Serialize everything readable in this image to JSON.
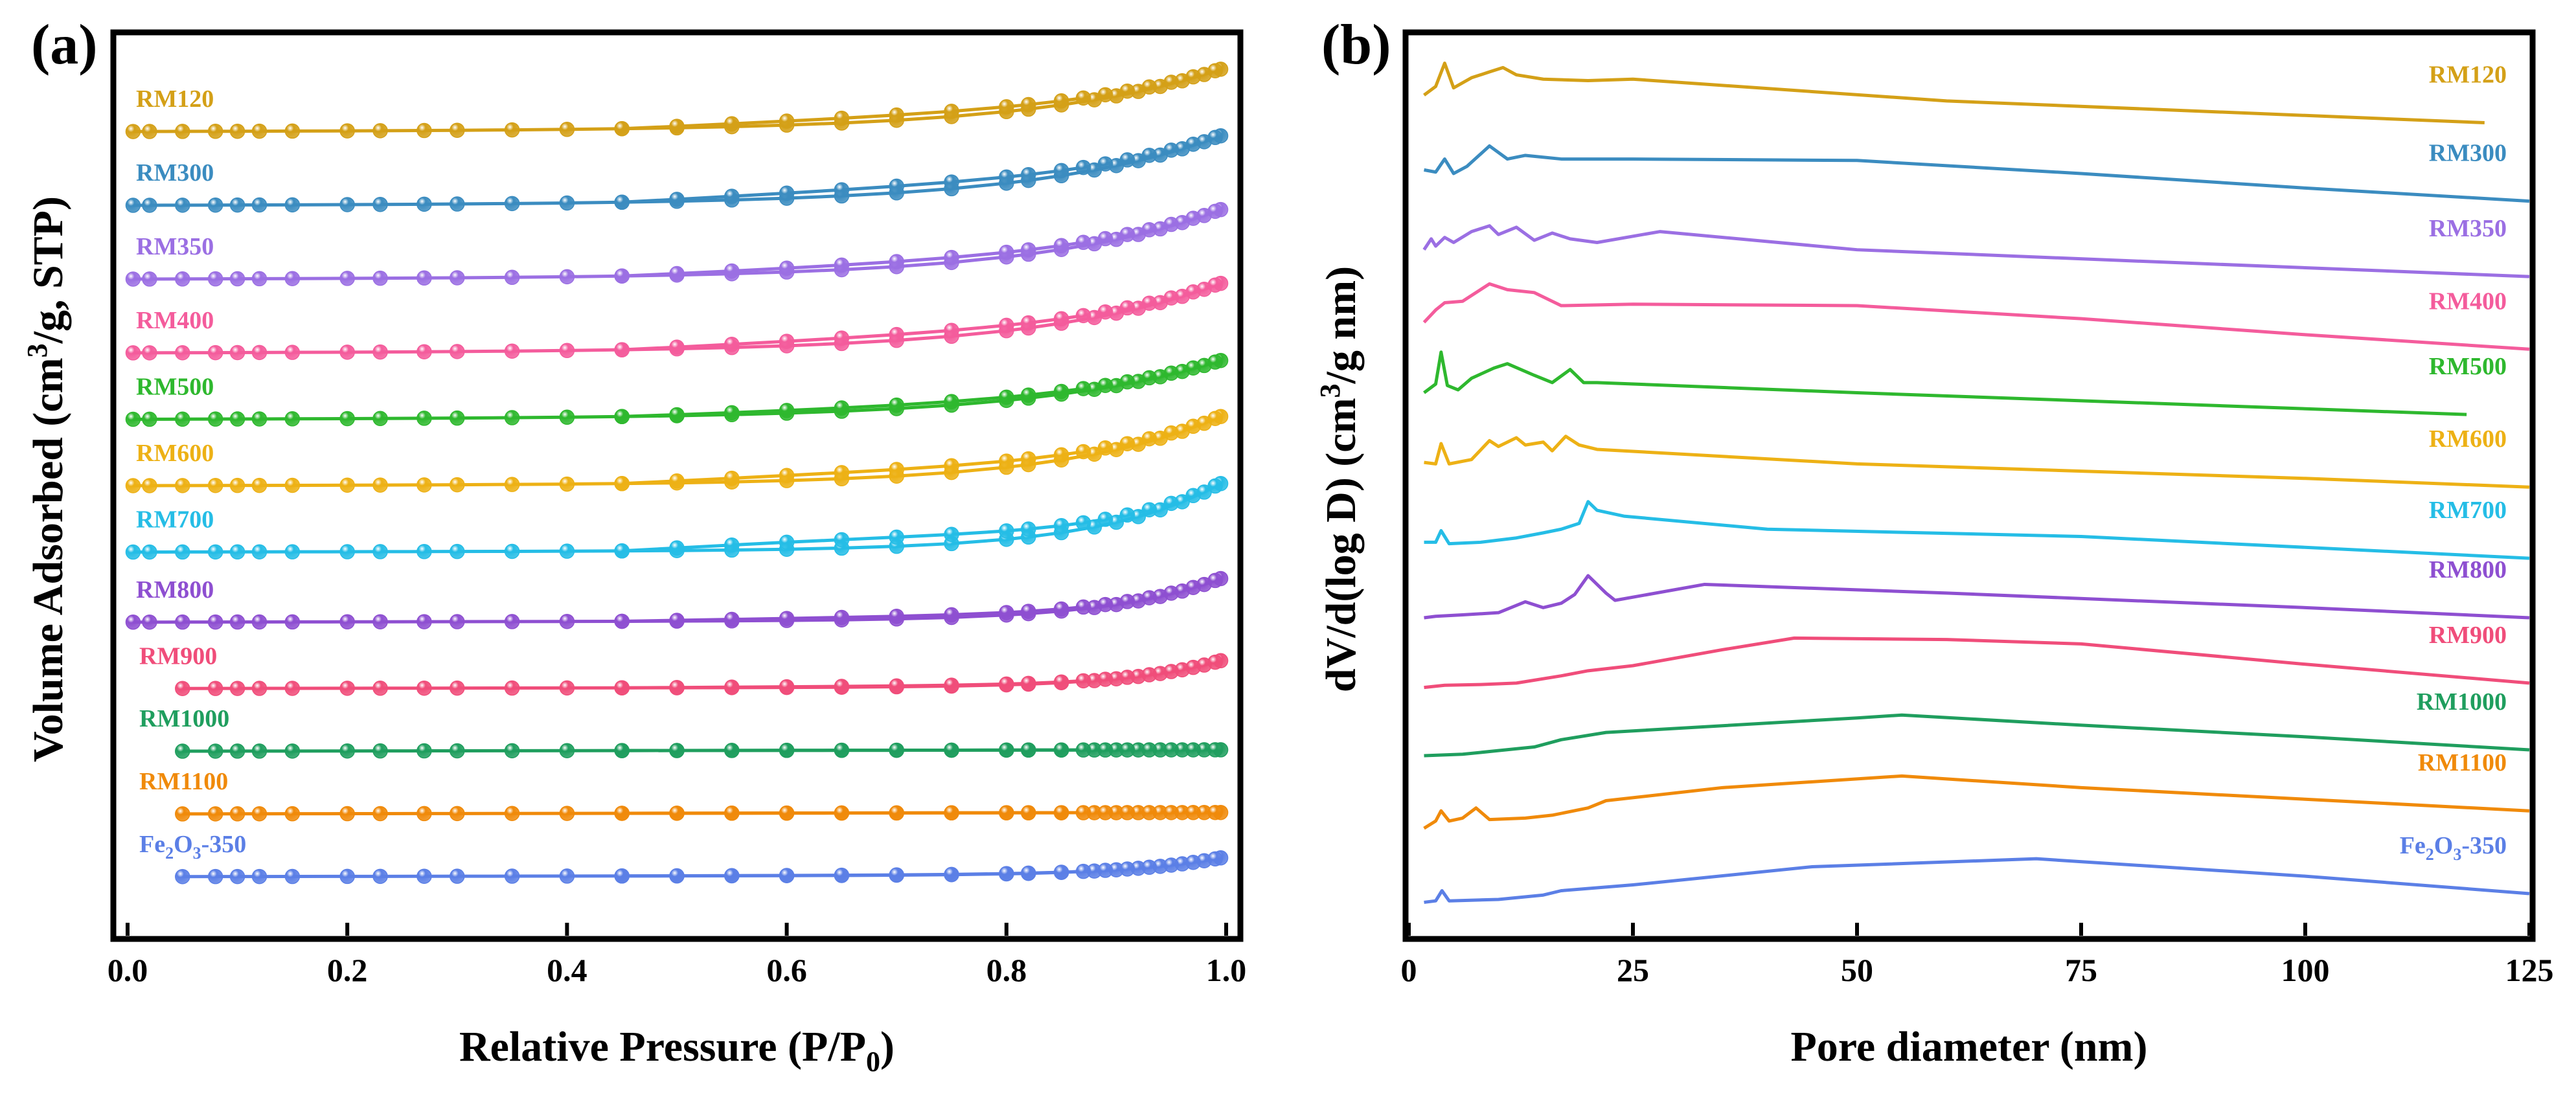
{
  "panels": [
    {
      "label": "(a)",
      "chart_data": {
        "type": "line",
        "xlabel": "Relative Pressure (P/P0)",
        "xlabel_main": "Relative Pressure (P/P",
        "xlabel_sub": "0",
        "xlabel_close": ")",
        "ylabel": "Volume Adsorbed (cm3/g, STP)",
        "ylabel_pre": "Volume Adsorbed (cm",
        "ylabel_sup": "3",
        "ylabel_post": "/g, STP)",
        "xlim": [
          0.0,
          1.0
        ],
        "xticks": [
          "0.0",
          "0.2",
          "0.4",
          "0.6",
          "0.8",
          "1.0"
        ],
        "y_ticks_shown": false,
        "series": [
          {
            "name": "RM120",
            "color": "#D4A017",
            "offset": 10.9,
            "rise": 0.85,
            "k": 6,
            "hyst": 0.14
          },
          {
            "name": "RM300",
            "color": "#3B8CC0",
            "offset": 9.9,
            "rise": 0.95,
            "k": 6,
            "hyst": 0.16
          },
          {
            "name": "RM350",
            "color": "#9B6FE3",
            "offset": 8.9,
            "rise": 0.95,
            "k": 6,
            "hyst": 0.12
          },
          {
            "name": "RM400",
            "color": "#F45C9C",
            "offset": 7.9,
            "rise": 0.95,
            "k": 6,
            "hyst": 0.14
          },
          {
            "name": "RM500",
            "color": "#2EB82E",
            "offset": 7.0,
            "rise": 0.8,
            "k": 6,
            "hyst": 0.1
          },
          {
            "name": "RM600",
            "color": "#EDB115",
            "offset": 6.1,
            "rise": 0.95,
            "k": 7,
            "hyst": 0.16
          },
          {
            "name": "RM700",
            "color": "#25BDE6",
            "offset": 5.2,
            "rise": 0.95,
            "k": 9,
            "hyst": 0.22
          },
          {
            "name": "RM800",
            "color": "#8E4FD1",
            "offset": 4.25,
            "rise": 0.6,
            "k": 10,
            "hyst": 0.1
          },
          {
            "name": "RM900",
            "color": "#F04D7A",
            "offset": 3.35,
            "rise": 0.38,
            "k": 12,
            "hyst": 0.05
          },
          {
            "name": "RM1000",
            "color": "#1F9E5E",
            "offset": 2.5,
            "rise": 0.0,
            "k": 12,
            "hyst": 0.0
          },
          {
            "name": "RM1100",
            "color": "#F08A0A",
            "offset": 1.65,
            "rise": 0.0,
            "k": 12,
            "hyst": 0.0
          },
          {
            "name": "Fe2O3-350",
            "color": "#5B7FE6",
            "offset": 0.8,
            "rise": 0.25,
            "k": 12,
            "hyst": 0.02
          }
        ]
      }
    },
    {
      "label": "(b)",
      "chart_data": {
        "type": "line",
        "xlabel": "Pore diameter (nm)",
        "ylabel": "dV/d(log D) (cm3/g nm)",
        "ylabel_pre": "dV/d(log D) (cm",
        "ylabel_sup": "3",
        "ylabel_post": "/g nm)",
        "xlim": [
          0,
          125
        ],
        "xticks": [
          "0",
          "25",
          "50",
          "75",
          "100",
          "125"
        ],
        "y_ticks_shown": false,
        "series": [
          {
            "name": "RM120",
            "color": "#D4A017",
            "points": [
              [
                1.7,
                11.58
              ],
              [
                3,
                11.7
              ],
              [
                4,
                12.02
              ],
              [
                5,
                11.68
              ],
              [
                7,
                11.82
              ],
              [
                9,
                11.9
              ],
              [
                10.5,
                11.96
              ],
              [
                12,
                11.86
              ],
              [
                15,
                11.8
              ],
              [
                20,
                11.78
              ],
              [
                25,
                11.8
              ],
              [
                60,
                11.5
              ],
              [
                120,
                11.2
              ]
            ]
          },
          {
            "name": "RM300",
            "color": "#3B8CC0",
            "points": [
              [
                1.7,
                10.55
              ],
              [
                3,
                10.52
              ],
              [
                4,
                10.7
              ],
              [
                5,
                10.5
              ],
              [
                6.5,
                10.6
              ],
              [
                9,
                10.88
              ],
              [
                11,
                10.7
              ],
              [
                13,
                10.75
              ],
              [
                17,
                10.7
              ],
              [
                25,
                10.7
              ],
              [
                50,
                10.68
              ],
              [
                75,
                10.5
              ],
              [
                100,
                10.3
              ],
              [
                125,
                10.12
              ]
            ]
          },
          {
            "name": "RM350",
            "color": "#9B6FE3",
            "points": [
              [
                1.7,
                9.45
              ],
              [
                2.5,
                9.6
              ],
              [
                3,
                9.5
              ],
              [
                4,
                9.62
              ],
              [
                5,
                9.55
              ],
              [
                7,
                9.7
              ],
              [
                9,
                9.78
              ],
              [
                10,
                9.66
              ],
              [
                12,
                9.76
              ],
              [
                14,
                9.58
              ],
              [
                16,
                9.68
              ],
              [
                18,
                9.6
              ],
              [
                21,
                9.55
              ],
              [
                28,
                9.7
              ],
              [
                50,
                9.45
              ],
              [
                80,
                9.3
              ],
              [
                125,
                9.08
              ]
            ]
          },
          {
            "name": "RM400",
            "color": "#F45C9C",
            "points": [
              [
                1.7,
                8.45
              ],
              [
                3,
                8.62
              ],
              [
                4,
                8.72
              ],
              [
                6,
                8.74
              ],
              [
                9,
                8.98
              ],
              [
                11,
                8.9
              ],
              [
                14,
                8.86
              ],
              [
                17,
                8.68
              ],
              [
                25,
                8.7
              ],
              [
                50,
                8.68
              ],
              [
                75,
                8.5
              ],
              [
                100,
                8.28
              ],
              [
                125,
                8.08
              ]
            ]
          },
          {
            "name": "RM500",
            "color": "#2EB82E",
            "points": [
              [
                1.7,
                7.48
              ],
              [
                3,
                7.6
              ],
              [
                3.6,
                8.04
              ],
              [
                4.3,
                7.58
              ],
              [
                5.5,
                7.52
              ],
              [
                7,
                7.68
              ],
              [
                9.5,
                7.82
              ],
              [
                11,
                7.88
              ],
              [
                14,
                7.72
              ],
              [
                16,
                7.62
              ],
              [
                18,
                7.8
              ],
              [
                19.5,
                7.62
              ],
              [
                21,
                7.62
              ],
              [
                50,
                7.48
              ],
              [
                118,
                7.18
              ]
            ]
          },
          {
            "name": "RM600",
            "color": "#EDB115",
            "points": [
              [
                1.7,
                6.52
              ],
              [
                3,
                6.5
              ],
              [
                3.6,
                6.78
              ],
              [
                4.5,
                6.5
              ],
              [
                7,
                6.56
              ],
              [
                9,
                6.82
              ],
              [
                10,
                6.74
              ],
              [
                12,
                6.86
              ],
              [
                13,
                6.76
              ],
              [
                15,
                6.8
              ],
              [
                16,
                6.68
              ],
              [
                17.5,
                6.88
              ],
              [
                19,
                6.76
              ],
              [
                21,
                6.7
              ],
              [
                50,
                6.5
              ],
              [
                100,
                6.3
              ],
              [
                125,
                6.18
              ]
            ]
          },
          {
            "name": "RM700",
            "color": "#25BDE6",
            "points": [
              [
                1.7,
                5.42
              ],
              [
                3,
                5.42
              ],
              [
                3.6,
                5.58
              ],
              [
                4.5,
                5.4
              ],
              [
                8,
                5.42
              ],
              [
                12,
                5.48
              ],
              [
                15,
                5.55
              ],
              [
                17,
                5.6
              ],
              [
                19,
                5.68
              ],
              [
                20,
                5.98
              ],
              [
                21,
                5.86
              ],
              [
                24,
                5.78
              ],
              [
                40,
                5.6
              ],
              [
                75,
                5.5
              ],
              [
                125,
                5.2
              ]
            ]
          },
          {
            "name": "RM800",
            "color": "#8E4FD1",
            "points": [
              [
                1.7,
                4.38
              ],
              [
                3,
                4.4
              ],
              [
                6,
                4.42
              ],
              [
                10,
                4.45
              ],
              [
                13,
                4.6
              ],
              [
                15,
                4.52
              ],
              [
                17,
                4.58
              ],
              [
                18.5,
                4.7
              ],
              [
                20,
                4.96
              ],
              [
                22,
                4.72
              ],
              [
                23,
                4.62
              ],
              [
                33,
                4.84
              ],
              [
                60,
                4.72
              ],
              [
                100,
                4.52
              ],
              [
                125,
                4.38
              ]
            ]
          },
          {
            "name": "RM900",
            "color": "#F04D7A",
            "points": [
              [
                1.7,
                3.42
              ],
              [
                4,
                3.45
              ],
              [
                8,
                3.46
              ],
              [
                12,
                3.48
              ],
              [
                17,
                3.58
              ],
              [
                20,
                3.65
              ],
              [
                25,
                3.72
              ],
              [
                35,
                3.94
              ],
              [
                43,
                4.1
              ],
              [
                60,
                4.08
              ],
              [
                75,
                4.02
              ],
              [
                100,
                3.74
              ],
              [
                125,
                3.48
              ]
            ]
          },
          {
            "name": "RM1000",
            "color": "#1F9E5E",
            "points": [
              [
                1.7,
                2.48
              ],
              [
                6,
                2.5
              ],
              [
                10,
                2.55
              ],
              [
                14,
                2.6
              ],
              [
                17,
                2.7
              ],
              [
                22,
                2.8
              ],
              [
                50,
                3.0
              ],
              [
                55,
                3.04
              ],
              [
                75,
                2.9
              ],
              [
                100,
                2.74
              ],
              [
                125,
                2.56
              ]
            ]
          },
          {
            "name": "RM1100",
            "color": "#F08A0A",
            "points": [
              [
                1.7,
                1.48
              ],
              [
                3,
                1.58
              ],
              [
                3.6,
                1.72
              ],
              [
                4.5,
                1.58
              ],
              [
                6,
                1.62
              ],
              [
                7.5,
                1.76
              ],
              [
                9,
                1.6
              ],
              [
                13,
                1.62
              ],
              [
                16,
                1.66
              ],
              [
                20,
                1.76
              ],
              [
                22,
                1.86
              ],
              [
                35,
                2.04
              ],
              [
                55,
                2.2
              ],
              [
                75,
                2.04
              ],
              [
                100,
                1.88
              ],
              [
                125,
                1.72
              ]
            ]
          },
          {
            "name": "Fe2O3-350",
            "color": "#5B7FE6",
            "points": [
              [
                1.7,
                0.46
              ],
              [
                3,
                0.48
              ],
              [
                3.7,
                0.62
              ],
              [
                4.5,
                0.48
              ],
              [
                10,
                0.5
              ],
              [
                15,
                0.56
              ],
              [
                17,
                0.62
              ],
              [
                25,
                0.7
              ],
              [
                45,
                0.95
              ],
              [
                70,
                1.06
              ],
              [
                100,
                0.82
              ],
              [
                125,
                0.58
              ]
            ]
          }
        ]
      }
    }
  ]
}
